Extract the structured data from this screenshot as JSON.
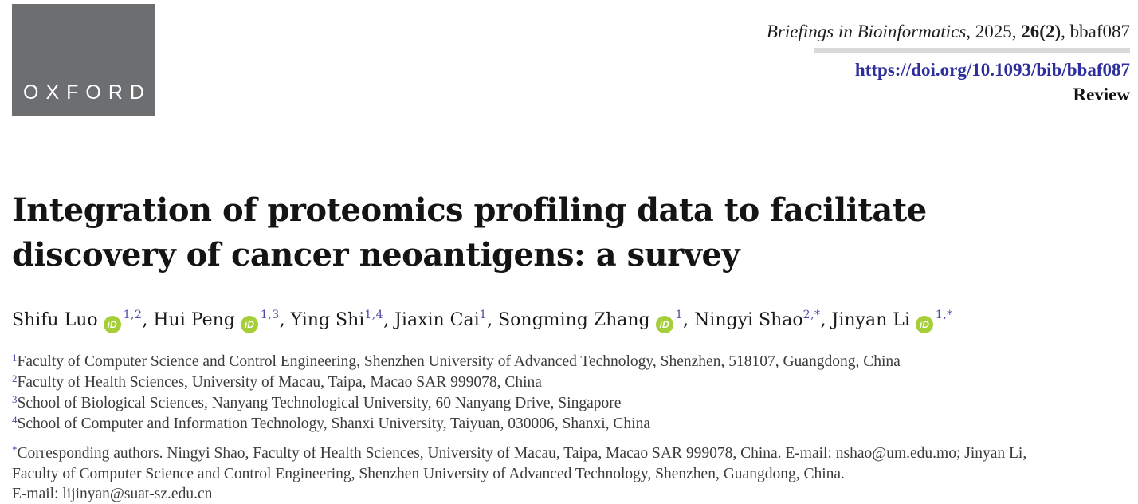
{
  "colors": {
    "logo_gray": "#6d6e70",
    "rule_gray": "#d9d9d9",
    "doi_blue": "#2d2d9d",
    "sup_blue": "#4d4da8",
    "orcid_green": "#a6ce39"
  },
  "logo": {
    "text": "OXFORD"
  },
  "masthead": {
    "journal_name": "Briefings in Bioinformatics",
    "journal_sep": ", 2025, ",
    "journal_volume": "26(2)",
    "journal_tail": ", bbaf087",
    "doi": "https://doi.org/10.1093/bib/bbaf087",
    "article_type": "Review"
  },
  "title": {
    "line1": "Integration of proteomics profiling data to facilitate",
    "line2": "discovery of cancer neoantigens: a survey"
  },
  "icons": {
    "orcid_label": "iD"
  },
  "authors": [
    {
      "name": "Shifu Luo",
      "orcid": true,
      "sup": "1,2"
    },
    {
      "name": "Hui Peng",
      "orcid": true,
      "sup": "1,3"
    },
    {
      "name": "Ying Shi",
      "orcid": false,
      "sup": "1,4"
    },
    {
      "name": "Jiaxin Cai",
      "orcid": false,
      "sup": "1"
    },
    {
      "name": "Songming Zhang",
      "orcid": true,
      "sup": "1"
    },
    {
      "name": "Ningyi Shao",
      "orcid": false,
      "sup": "2,*"
    },
    {
      "name": "Jinyan Li",
      "orcid": true,
      "sup": "1,*"
    }
  ],
  "author_separator": ", ",
  "affiliations": [
    {
      "sup": "1",
      "text": "Faculty of Computer Science and Control Engineering, Shenzhen University of Advanced Technology, Shenzhen, 518107, Guangdong, China"
    },
    {
      "sup": "2",
      "text": "Faculty of Health Sciences, University of Macau, Taipa, Macao SAR 999078, China"
    },
    {
      "sup": "3",
      "text": "School of Biological Sciences, Nanyang Technological University, 60 Nanyang Drive, Singapore"
    },
    {
      "sup": "4",
      "text": "School of Computer and Information Technology, Shanxi University, Taiyuan, 030006, Shanxi, China"
    }
  ],
  "footnote": {
    "sup": "*",
    "line1": "Corresponding authors. Ningyi Shao, Faculty of Health Sciences, University of Macau, Taipa, Macao SAR 999078, China. E-mail: nshao@um.edu.mo; Jinyan Li,",
    "line2": "Faculty of Computer Science and Control Engineering, Shenzhen University of Advanced Technology, Shenzhen, Guangdong, China.",
    "line3": "E-mail: lijinyan@suat-sz.edu.cn"
  }
}
